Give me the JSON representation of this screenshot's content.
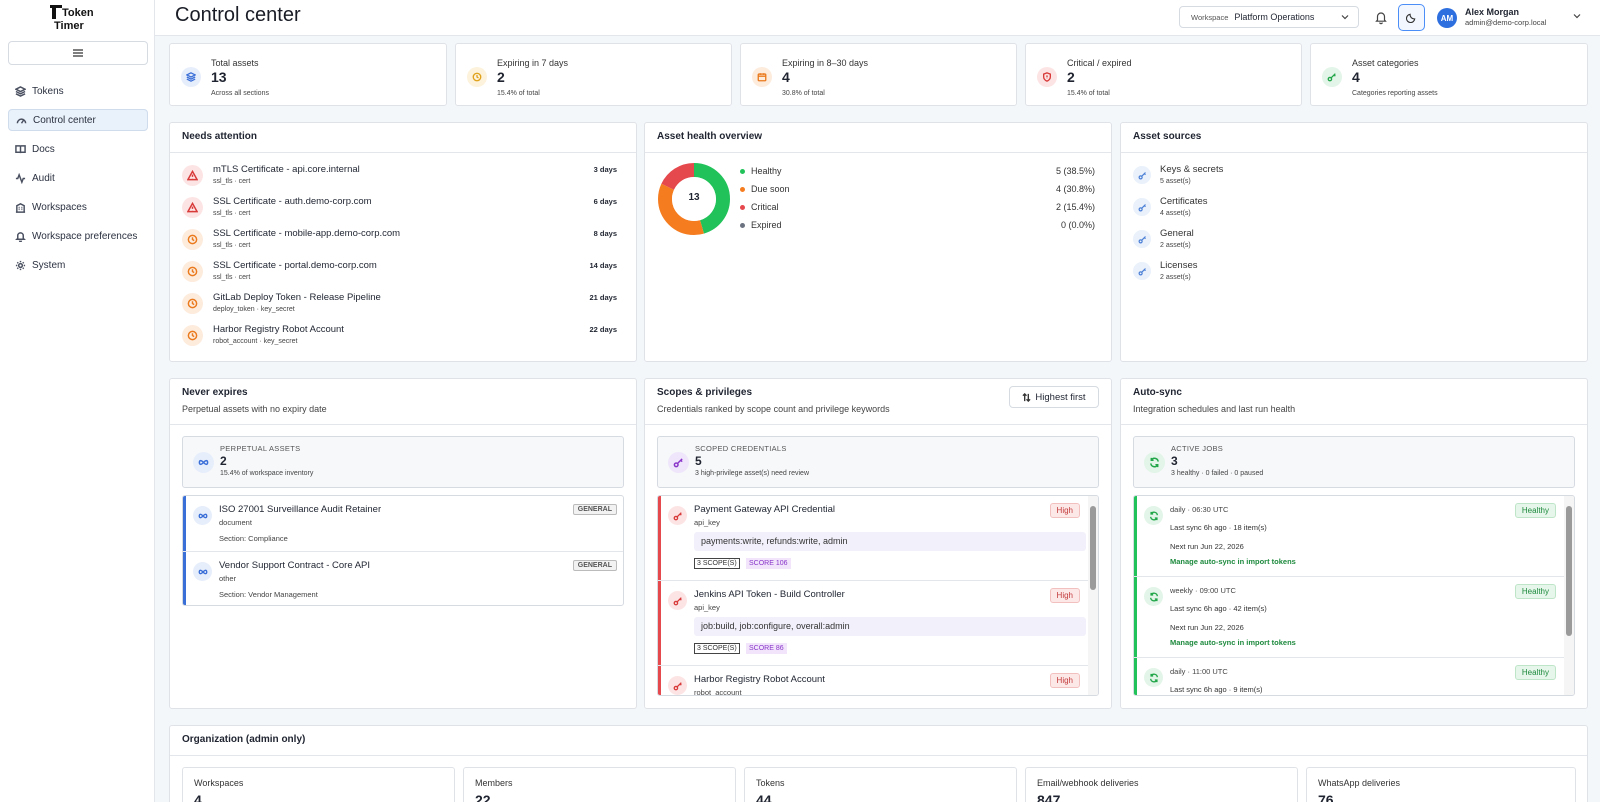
{
  "app": {
    "logo_text_top": "Token",
    "logo_text_bottom": "Timer"
  },
  "sidebar": {
    "items": [
      {
        "label": "Tokens",
        "icon": "layers-icon"
      },
      {
        "label": "Control center",
        "icon": "gauge-icon",
        "active": true
      },
      {
        "label": "Docs",
        "icon": "book-icon"
      },
      {
        "label": "Audit",
        "icon": "activity-icon"
      },
      {
        "label": "Workspaces",
        "icon": "building-icon"
      },
      {
        "label": "Workspace preferences",
        "icon": "bell-icon"
      },
      {
        "label": "System",
        "icon": "gear-icon"
      }
    ]
  },
  "header": {
    "title": "Control center",
    "workspace_label": "Workspace",
    "workspace_value": "Platform Operations",
    "user_initials": "AM",
    "user_name": "Alex Morgan",
    "user_email": "admin@demo-corp.local"
  },
  "stats": [
    {
      "label": "Total assets",
      "value": "13",
      "sub": "Across all sections",
      "icon": "layers-icon",
      "color": "#3b6fd8"
    },
    {
      "label": "Expiring in 7 days",
      "value": "2",
      "sub": "15.4% of total",
      "icon": "clock-icon",
      "color": "#e0a11b"
    },
    {
      "label": "Expiring in 8–30 days",
      "value": "4",
      "sub": "30.8% of total",
      "icon": "calendar-icon",
      "color": "#ea7a1d"
    },
    {
      "label": "Critical / expired",
      "value": "2",
      "sub": "15.4% of total",
      "icon": "shield-icon",
      "color": "#d83a3a"
    },
    {
      "label": "Asset categories",
      "value": "4",
      "sub": "Categories reporting assets",
      "icon": "key-icon",
      "color": "#22a64a"
    }
  ],
  "needs_attention": {
    "title": "Needs attention",
    "items": [
      {
        "title": "mTLS Certificate - api.core.internal",
        "sub": "ssl_tls · cert",
        "days": "3 days",
        "severity": "critical"
      },
      {
        "title": "SSL Certificate - auth.demo-corp.com",
        "sub": "ssl_tls · cert",
        "days": "6 days",
        "severity": "critical"
      },
      {
        "title": "SSL Certificate - mobile-app.demo-corp.com",
        "sub": "ssl_tls · cert",
        "days": "8 days",
        "severity": "warning"
      },
      {
        "title": "SSL Certificate - portal.demo-corp.com",
        "sub": "ssl_tls · cert",
        "days": "14 days",
        "severity": "warning"
      },
      {
        "title": "GitLab Deploy Token - Release Pipeline",
        "sub": "deploy_token · key_secret",
        "days": "21 days",
        "severity": "warning"
      },
      {
        "title": "Harbor Registry Robot Account",
        "sub": "robot_account · key_secret",
        "days": "22 days",
        "severity": "warning"
      }
    ]
  },
  "health": {
    "title": "Asset health overview",
    "total": "13",
    "segments": [
      {
        "name": "Healthy",
        "value": 5,
        "display": "5 (38.5%)",
        "color": "#22c25a"
      },
      {
        "name": "Due soon",
        "value": 4,
        "display": "4 (30.8%)",
        "color": "#f57c1f"
      },
      {
        "name": "Critical",
        "value": 2,
        "display": "2 (15.4%)",
        "color": "#e5484d"
      },
      {
        "name": "Expired",
        "value": 0,
        "display": "0 (0.0%)",
        "color": "#6b7280"
      }
    ]
  },
  "sources": {
    "title": "Asset sources",
    "items": [
      {
        "name": "Keys & secrets",
        "count": "5 asset(s)"
      },
      {
        "name": "Certificates",
        "count": "4 asset(s)"
      },
      {
        "name": "General",
        "count": "2 asset(s)"
      },
      {
        "name": "Licenses",
        "count": "2 asset(s)"
      }
    ]
  },
  "never_expires": {
    "title": "Never expires",
    "subtitle": "Perpetual assets with no expiry date",
    "summary_label": "PERPETUAL ASSETS",
    "summary_value": "2",
    "summary_sub": "15.4% of workspace inventory",
    "items": [
      {
        "title": "ISO 27001 Surveillance Audit Retainer",
        "type": "document",
        "section": "Section: Compliance",
        "tag": "GENERAL"
      },
      {
        "title": "Vendor Support Contract - Core API",
        "type": "other",
        "section": "Section: Vendor Management",
        "tag": "GENERAL"
      }
    ]
  },
  "scopes": {
    "title": "Scopes & privileges",
    "subtitle": "Credentials ranked by scope count and privilege keywords",
    "sort_label": "Highest first",
    "summary_label": "SCOPED CREDENTIALS",
    "summary_value": "5",
    "summary_sub": "3 high-privilege asset(s) need review",
    "items": [
      {
        "title": "Payment Gateway API Credential",
        "type": "api_key",
        "scopes": "payments:write, refunds:write, admin",
        "scope_count": "3 SCOPE(S)",
        "score": "SCORE 106",
        "badge": "High"
      },
      {
        "title": "Jenkins API Token - Build Controller",
        "type": "api_key",
        "scopes": "job:build, job:configure, overall:admin",
        "scope_count": "3 SCOPE(S)",
        "score": "SCORE 86",
        "badge": "High"
      },
      {
        "title": "Harbor Registry Robot Account",
        "type": "robot_account",
        "badge": "High"
      }
    ]
  },
  "autosync": {
    "title": "Auto-sync",
    "subtitle": "Integration schedules and last run health",
    "summary_label": "ACTIVE JOBS",
    "summary_value": "3",
    "summary_sub": "3 healthy · 0 failed · 0 paused",
    "items": [
      {
        "schedule": "daily · 06:30 UTC",
        "last": "Last sync 6h ago · 18 item(s)",
        "next": "Next run Jun 22, 2026",
        "link": "Manage auto-sync in import tokens",
        "badge": "Healthy"
      },
      {
        "schedule": "weekly · 09:00 UTC",
        "last": "Last sync 6h ago · 42 item(s)",
        "next": "Next run Jun 22, 2026",
        "link": "Manage auto-sync in import tokens",
        "badge": "Healthy"
      },
      {
        "schedule": "daily · 11:00 UTC",
        "last": "Last sync 6h ago · 9 item(s)",
        "badge": "Healthy"
      }
    ]
  },
  "organization": {
    "title": "Organization (admin only)",
    "cards": [
      {
        "label": "Workspaces",
        "value": "4"
      },
      {
        "label": "Members",
        "value": "22"
      },
      {
        "label": "Tokens",
        "value": "44"
      },
      {
        "label": "Email/webhook deliveries",
        "value": "847"
      },
      {
        "label": "WhatsApp deliveries",
        "value": "76"
      }
    ]
  }
}
